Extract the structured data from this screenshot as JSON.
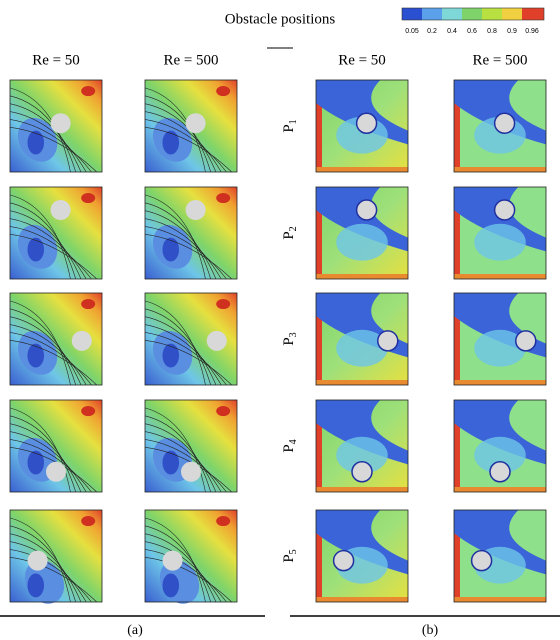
{
  "header": {
    "title": "Obstacle positions",
    "colorbar_labels": [
      "0.05",
      "0.2",
      "0.4",
      "0.6",
      "0.8",
      "0.9",
      "0.96"
    ]
  },
  "columns": [
    "Re = 50",
    "Re = 500",
    "Re = 50",
    "Re = 500"
  ],
  "rows": [
    {
      "letter": "P",
      "index": "1"
    },
    {
      "letter": "P",
      "index": "2"
    },
    {
      "letter": "P",
      "index": "3"
    },
    {
      "letter": "P",
      "index": "4"
    },
    {
      "letter": "P",
      "index": "5"
    }
  ],
  "captions": [
    "(a)",
    "(b)"
  ]
}
